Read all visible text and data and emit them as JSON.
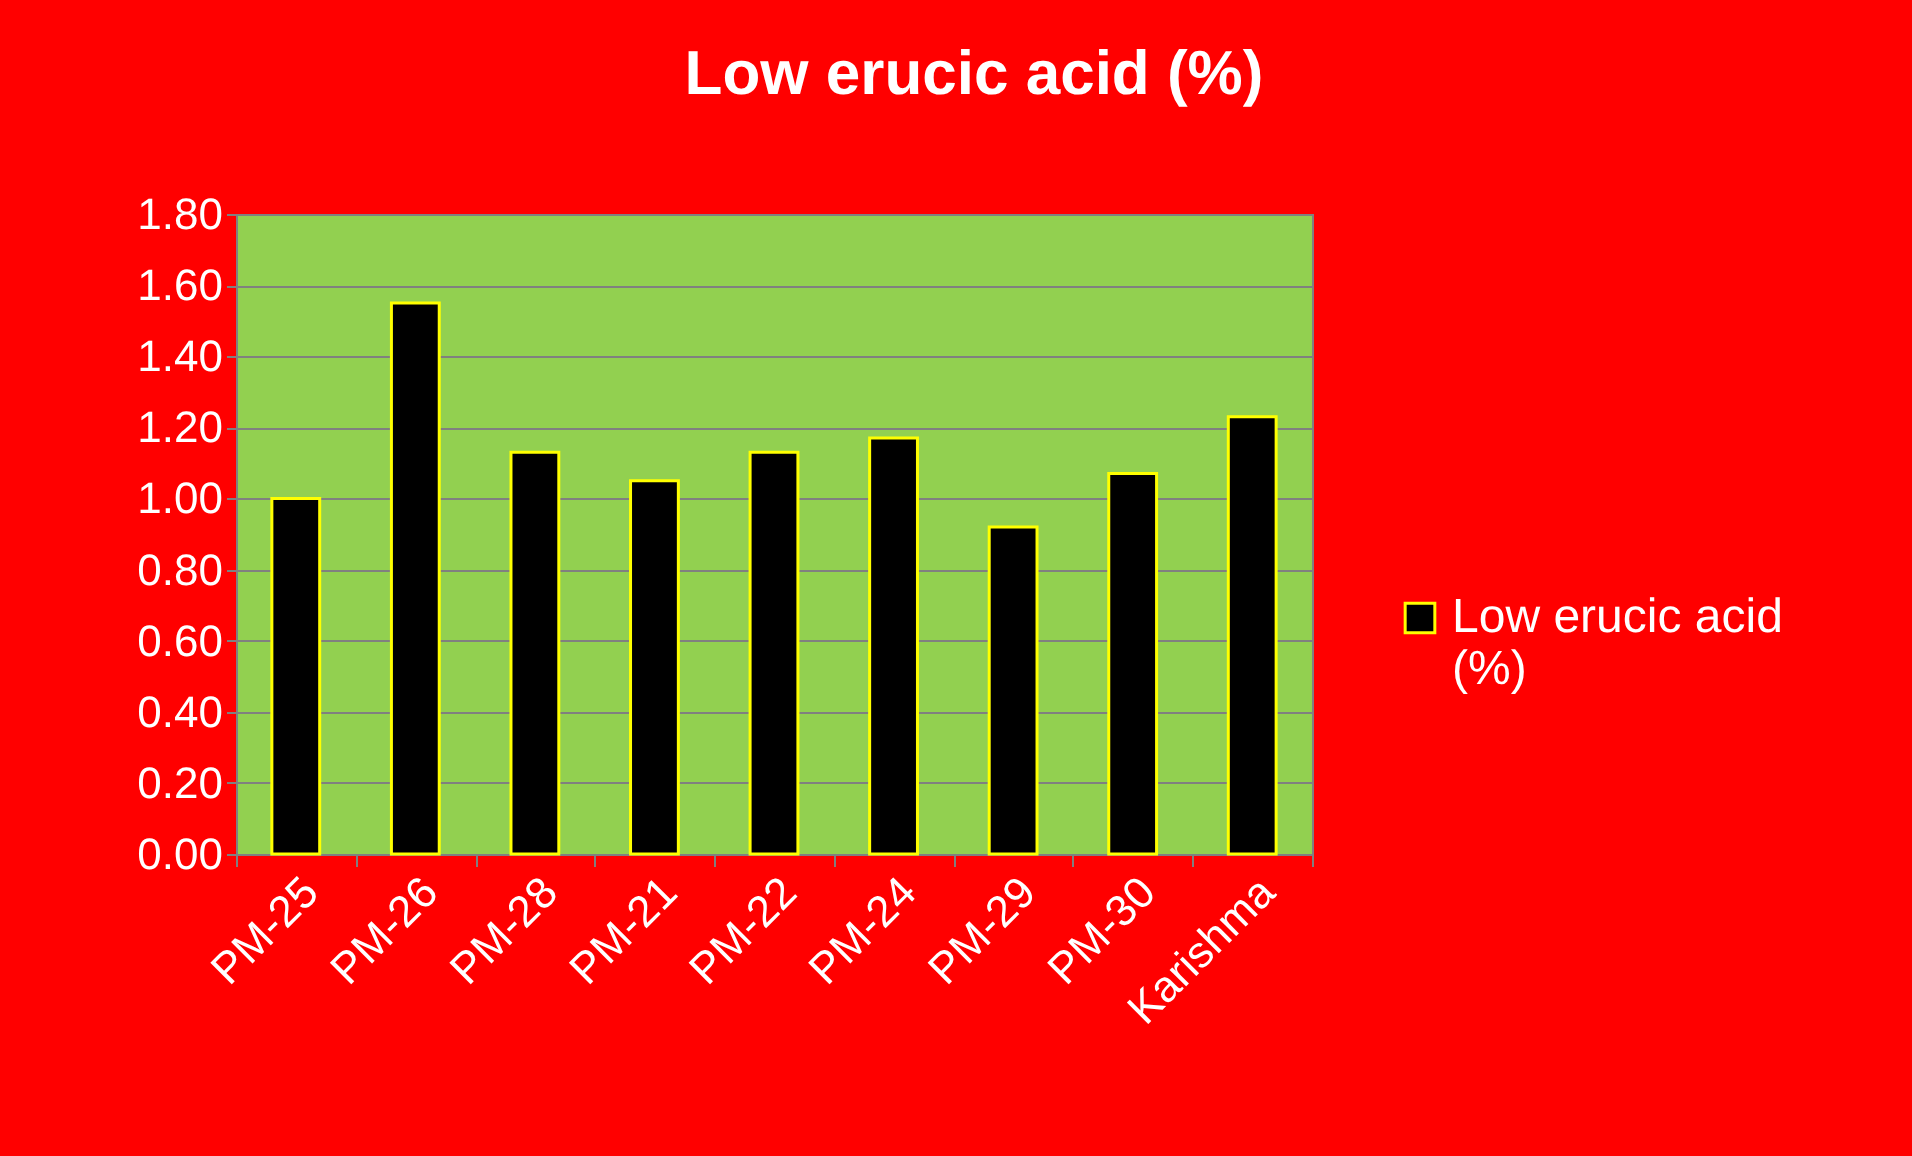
{
  "chart_data": {
    "type": "bar",
    "title": "Low erucic acid  (%)",
    "categories": [
      "PM-25",
      "PM-26",
      "PM-28",
      "PM-21",
      "PM-22",
      "PM-24",
      "PM-29",
      "PM-30",
      "Karishma"
    ],
    "series": [
      {
        "name": "Low erucic acid (%)",
        "color": "#000000",
        "values": [
          1.0,
          1.55,
          1.13,
          1.05,
          1.13,
          1.17,
          0.92,
          1.07,
          1.23
        ]
      }
    ],
    "ylim": [
      0,
      1.8
    ],
    "yticks": [
      {
        "value": 0,
        "label": "0.00"
      },
      {
        "value": 0.2,
        "label": "0.20"
      },
      {
        "value": 0.4,
        "label": "0.40"
      },
      {
        "value": 0.6,
        "label": "0.60"
      },
      {
        "value": 0.8,
        "label": "0.80"
      },
      {
        "value": 1.0,
        "label": "1.00"
      },
      {
        "value": 1.2,
        "label": "1.20"
      },
      {
        "value": 1.4,
        "label": "1.40"
      },
      {
        "value": 1.6,
        "label": "1.60"
      },
      {
        "value": 1.8,
        "label": "1.80"
      }
    ],
    "grid": "y",
    "legend": "right"
  }
}
